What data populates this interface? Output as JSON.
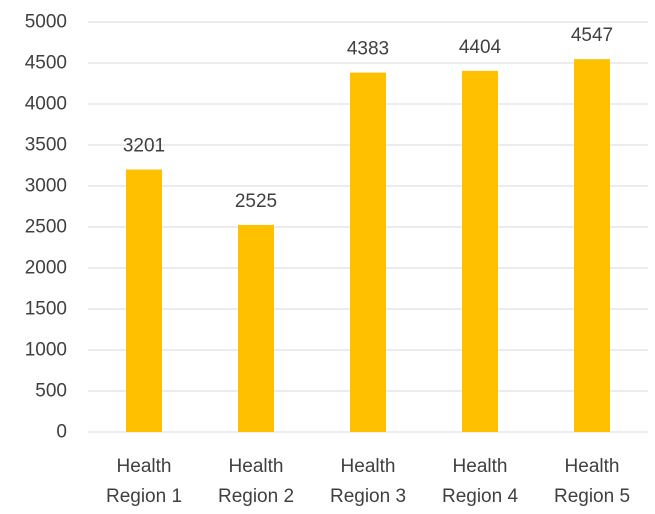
{
  "chart_data": {
    "type": "bar",
    "categories": [
      [
        "Health",
        "Region 1"
      ],
      [
        "Health",
        "Region 2"
      ],
      [
        "Health",
        "Region 3"
      ],
      [
        "Health",
        "Region 4"
      ],
      [
        "Health",
        "Region 5"
      ]
    ],
    "values": [
      3201,
      2525,
      4383,
      4404,
      4547
    ],
    "data_labels": [
      "3201",
      "2525",
      "4383",
      "4404",
      "4547"
    ],
    "ylim": [
      0,
      5000
    ],
    "yticks": [
      0,
      500,
      1000,
      1500,
      2000,
      2500,
      3000,
      3500,
      4000,
      4500,
      5000
    ],
    "ytick_labels": [
      "0",
      "500",
      "1000",
      "1500",
      "2000",
      "2500",
      "3000",
      "3500",
      "4000",
      "4500",
      "5000"
    ],
    "title": "",
    "xlabel": "",
    "ylabel": "",
    "grid": true,
    "legend": "none",
    "colors": {
      "bar": "#FFC000",
      "grid": "#D9D9D9",
      "text": "#404040"
    }
  }
}
